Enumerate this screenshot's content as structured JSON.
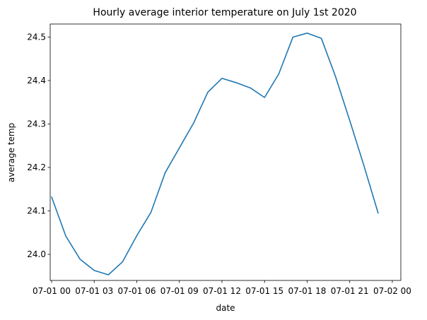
{
  "chart_data": {
    "type": "line",
    "title": "Hourly average interior temperature on July 1st 2020",
    "xlabel": "date",
    "ylabel": "average temp",
    "x_tick_labels": [
      "07-01 00",
      "07-01 03",
      "07-01 06",
      "07-01 09",
      "07-01 12",
      "07-01 15",
      "07-01 18",
      "07-01 21",
      "07-02 00"
    ],
    "x_tick_hours": [
      0,
      3,
      6,
      9,
      12,
      15,
      18,
      21,
      24
    ],
    "y_tick_labels": [
      "24.0",
      "24.1",
      "24.2",
      "24.3",
      "24.4",
      "24.5"
    ],
    "y_ticks": [
      24.0,
      24.1,
      24.2,
      24.3,
      24.4,
      24.5
    ],
    "xlim": [
      -0.1,
      24.6
    ],
    "ylim": [
      23.94,
      24.53
    ],
    "grid": false,
    "x_hours": [
      0,
      1,
      2,
      3,
      4,
      5,
      6,
      7,
      8,
      9,
      10,
      11,
      12,
      13,
      14,
      15,
      16,
      17,
      18,
      19,
      20,
      21,
      22,
      23
    ],
    "series": [
      {
        "color": "#1f77b4",
        "values": [
          24.132,
          24.042,
          23.989,
          23.963,
          23.953,
          23.983,
          24.043,
          24.097,
          24.188,
          24.245,
          24.302,
          24.373,
          24.405,
          24.395,
          24.383,
          24.361,
          24.415,
          24.5,
          24.509,
          24.497,
          24.409,
          24.308,
          24.204,
          24.095
        ]
      }
    ]
  }
}
